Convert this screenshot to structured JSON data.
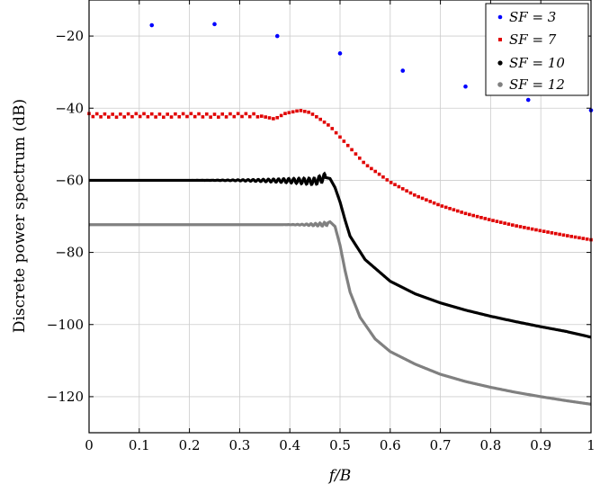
{
  "chart_data": {
    "type": "scatter",
    "xlabel": "f/B",
    "ylabel": "Discrete power spectrum (dB)",
    "xlim": [
      0,
      1
    ],
    "ylim": [
      -130,
      -10
    ],
    "xticks": [
      0,
      0.1,
      0.2,
      0.3,
      0.4,
      0.5,
      0.6,
      0.7,
      0.8,
      0.9,
      1
    ],
    "xtick_labels": [
      "0",
      "0.1",
      "0.2",
      "0.3",
      "0.4",
      "0.5",
      "0.6",
      "0.7",
      "0.8",
      "0.9",
      "1"
    ],
    "yticks": [
      -120,
      -100,
      -80,
      -60,
      -40,
      -20
    ],
    "ytick_labels": [
      "−120",
      "−100",
      "−80",
      "−60",
      "−40",
      "−20"
    ],
    "grid": true,
    "legend_position": "top-right",
    "series": [
      {
        "name": "SF = 3",
        "color": "#0000ff",
        "style": "dots",
        "points": [
          [
            0.125,
            -17
          ],
          [
            0.25,
            -16.7
          ],
          [
            0.375,
            -20
          ],
          [
            0.5,
            -24.8
          ],
          [
            0.625,
            -29.6
          ],
          [
            0.75,
            -34
          ],
          [
            0.875,
            -37.7
          ],
          [
            1.0,
            -40.6
          ]
        ]
      },
      {
        "name": "SF = 7",
        "color": "#e00000",
        "style": "dots",
        "points": [
          [
            0,
            -42
          ],
          [
            0.05,
            -42.2
          ],
          [
            0.1,
            -42
          ],
          [
            0.15,
            -42.2
          ],
          [
            0.2,
            -42
          ],
          [
            0.25,
            -42.2
          ],
          [
            0.3,
            -42
          ],
          [
            0.34,
            -42.1
          ],
          [
            0.37,
            -43
          ],
          [
            0.39,
            -41.5
          ],
          [
            0.42,
            -40.6
          ],
          [
            0.44,
            -41.2
          ],
          [
            0.46,
            -43
          ],
          [
            0.48,
            -45
          ],
          [
            0.5,
            -48
          ],
          [
            0.55,
            -55.5
          ],
          [
            0.6,
            -60.5
          ],
          [
            0.65,
            -64.2
          ],
          [
            0.7,
            -67
          ],
          [
            0.75,
            -69.2
          ],
          [
            0.8,
            -71
          ],
          [
            0.85,
            -72.6
          ],
          [
            0.9,
            -74
          ],
          [
            0.95,
            -75.3
          ],
          [
            1.0,
            -76.5
          ]
        ]
      },
      {
        "name": "SF = 10",
        "color": "#000000",
        "style": "line",
        "points": [
          [
            0,
            -60
          ],
          [
            0.3,
            -60
          ],
          [
            0.4,
            -60.1
          ],
          [
            0.45,
            -60.3
          ],
          [
            0.47,
            -59.2
          ],
          [
            0.48,
            -59.5
          ],
          [
            0.49,
            -62
          ],
          [
            0.5,
            -66
          ],
          [
            0.51,
            -71
          ],
          [
            0.52,
            -75.5
          ],
          [
            0.55,
            -82
          ],
          [
            0.6,
            -88
          ],
          [
            0.65,
            -91.5
          ],
          [
            0.7,
            -94
          ],
          [
            0.75,
            -96
          ],
          [
            0.8,
            -97.7
          ],
          [
            0.85,
            -99.2
          ],
          [
            0.9,
            -100.6
          ],
          [
            0.95,
            -101.9
          ],
          [
            1.0,
            -103.5
          ]
        ]
      },
      {
        "name": "SF = 12",
        "color": "#808080",
        "style": "line",
        "points": [
          [
            0,
            -72.3
          ],
          [
            0.45,
            -72.3
          ],
          [
            0.47,
            -72.2
          ],
          [
            0.48,
            -71.5
          ],
          [
            0.49,
            -72.8
          ],
          [
            0.5,
            -78
          ],
          [
            0.51,
            -85
          ],
          [
            0.52,
            -91
          ],
          [
            0.54,
            -98
          ],
          [
            0.57,
            -104
          ],
          [
            0.6,
            -107.5
          ],
          [
            0.65,
            -111
          ],
          [
            0.7,
            -113.8
          ],
          [
            0.75,
            -115.8
          ],
          [
            0.8,
            -117.4
          ],
          [
            0.85,
            -118.8
          ],
          [
            0.9,
            -120
          ],
          [
            0.95,
            -121.1
          ],
          [
            1.0,
            -122.1
          ]
        ]
      }
    ]
  }
}
